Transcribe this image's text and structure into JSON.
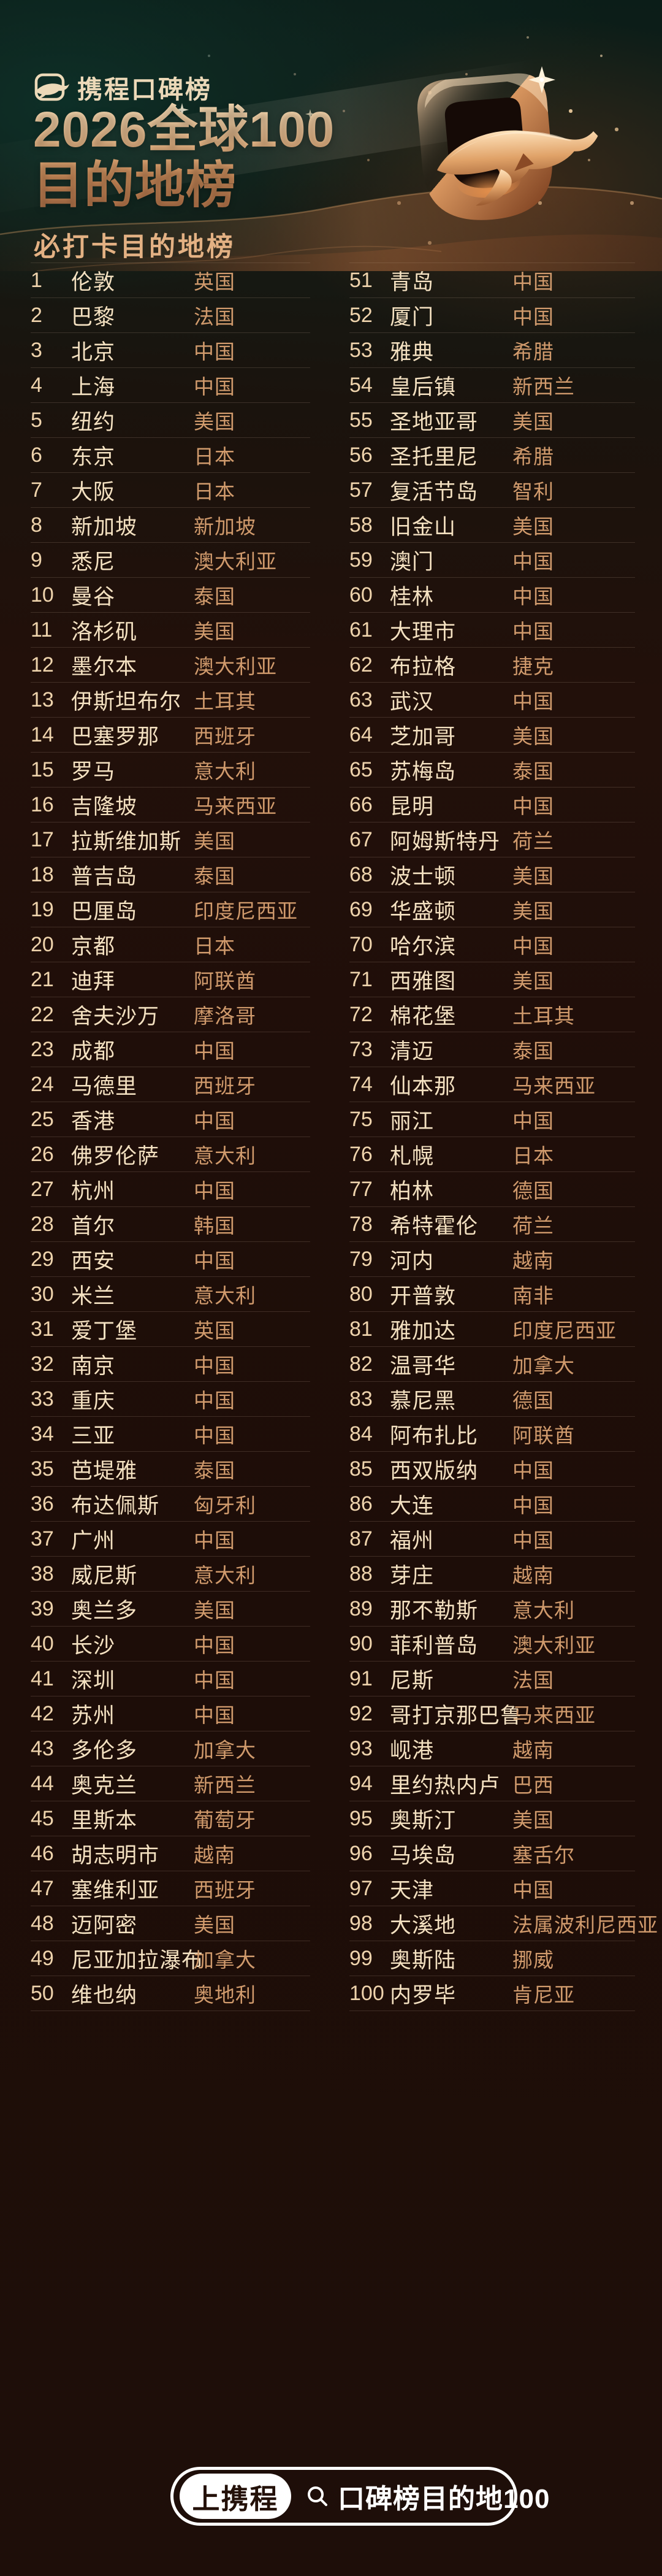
{
  "header": {
    "brand": "携程口碑榜",
    "title_line1": "2026全球100",
    "title_line2": "目的地榜",
    "section_title": "必打卡目的地榜"
  },
  "list": {
    "left": [
      {
        "rank": "1",
        "city": "伦敦",
        "country": "英国"
      },
      {
        "rank": "2",
        "city": "巴黎",
        "country": "法国"
      },
      {
        "rank": "3",
        "city": "北京",
        "country": "中国"
      },
      {
        "rank": "4",
        "city": "上海",
        "country": "中国"
      },
      {
        "rank": "5",
        "city": "纽约",
        "country": "美国"
      },
      {
        "rank": "6",
        "city": "东京",
        "country": "日本"
      },
      {
        "rank": "7",
        "city": "大阪",
        "country": "日本"
      },
      {
        "rank": "8",
        "city": "新加坡",
        "country": "新加坡"
      },
      {
        "rank": "9",
        "city": "悉尼",
        "country": "澳大利亚"
      },
      {
        "rank": "10",
        "city": "曼谷",
        "country": "泰国"
      },
      {
        "rank": "11",
        "city": "洛杉矶",
        "country": "美国"
      },
      {
        "rank": "12",
        "city": "墨尔本",
        "country": "澳大利亚"
      },
      {
        "rank": "13",
        "city": "伊斯坦布尔",
        "country": "土耳其"
      },
      {
        "rank": "14",
        "city": "巴塞罗那",
        "country": "西班牙"
      },
      {
        "rank": "15",
        "city": "罗马",
        "country": "意大利"
      },
      {
        "rank": "16",
        "city": "吉隆坡",
        "country": "马来西亚"
      },
      {
        "rank": "17",
        "city": "拉斯维加斯",
        "country": "美国"
      },
      {
        "rank": "18",
        "city": "普吉岛",
        "country": "泰国"
      },
      {
        "rank": "19",
        "city": "巴厘岛",
        "country": "印度尼西亚"
      },
      {
        "rank": "20",
        "city": "京都",
        "country": "日本"
      },
      {
        "rank": "21",
        "city": "迪拜",
        "country": "阿联酋"
      },
      {
        "rank": "22",
        "city": "舍夫沙万",
        "country": "摩洛哥"
      },
      {
        "rank": "23",
        "city": "成都",
        "country": "中国"
      },
      {
        "rank": "24",
        "city": "马德里",
        "country": "西班牙"
      },
      {
        "rank": "25",
        "city": "香港",
        "country": "中国"
      },
      {
        "rank": "26",
        "city": "佛罗伦萨",
        "country": "意大利"
      },
      {
        "rank": "27",
        "city": "杭州",
        "country": "中国"
      },
      {
        "rank": "28",
        "city": "首尔",
        "country": "韩国"
      },
      {
        "rank": "29",
        "city": "西安",
        "country": "中国"
      },
      {
        "rank": "30",
        "city": "米兰",
        "country": "意大利"
      },
      {
        "rank": "31",
        "city": "爱丁堡",
        "country": "英国"
      },
      {
        "rank": "32",
        "city": "南京",
        "country": "中国"
      },
      {
        "rank": "33",
        "city": "重庆",
        "country": "中国"
      },
      {
        "rank": "34",
        "city": "三亚",
        "country": "中国"
      },
      {
        "rank": "35",
        "city": "芭堤雅",
        "country": "泰国"
      },
      {
        "rank": "36",
        "city": "布达佩斯",
        "country": "匈牙利"
      },
      {
        "rank": "37",
        "city": "广州",
        "country": "中国"
      },
      {
        "rank": "38",
        "city": "威尼斯",
        "country": "意大利"
      },
      {
        "rank": "39",
        "city": "奥兰多",
        "country": "美国"
      },
      {
        "rank": "40",
        "city": "长沙",
        "country": "中国"
      },
      {
        "rank": "41",
        "city": "深圳",
        "country": "中国"
      },
      {
        "rank": "42",
        "city": "苏州",
        "country": "中国"
      },
      {
        "rank": "43",
        "city": "多伦多",
        "country": "加拿大"
      },
      {
        "rank": "44",
        "city": "奥克兰",
        "country": "新西兰"
      },
      {
        "rank": "45",
        "city": "里斯本",
        "country": "葡萄牙"
      },
      {
        "rank": "46",
        "city": "胡志明市",
        "country": "越南"
      },
      {
        "rank": "47",
        "city": "塞维利亚",
        "country": "西班牙"
      },
      {
        "rank": "48",
        "city": "迈阿密",
        "country": "美国"
      },
      {
        "rank": "49",
        "city": "尼亚加拉瀑布",
        "country": "加拿大"
      },
      {
        "rank": "50",
        "city": "维也纳",
        "country": "奥地利"
      }
    ],
    "right": [
      {
        "rank": "51",
        "city": "青岛",
        "country": "中国"
      },
      {
        "rank": "52",
        "city": "厦门",
        "country": "中国"
      },
      {
        "rank": "53",
        "city": "雅典",
        "country": "希腊"
      },
      {
        "rank": "54",
        "city": "皇后镇",
        "country": "新西兰"
      },
      {
        "rank": "55",
        "city": "圣地亚哥",
        "country": "美国"
      },
      {
        "rank": "56",
        "city": "圣托里尼",
        "country": "希腊"
      },
      {
        "rank": "57",
        "city": "复活节岛",
        "country": "智利"
      },
      {
        "rank": "58",
        "city": "旧金山",
        "country": "美国"
      },
      {
        "rank": "59",
        "city": "澳门",
        "country": "中国"
      },
      {
        "rank": "60",
        "city": "桂林",
        "country": "中国"
      },
      {
        "rank": "61",
        "city": "大理市",
        "country": "中国"
      },
      {
        "rank": "62",
        "city": "布拉格",
        "country": "捷克"
      },
      {
        "rank": "63",
        "city": "武汉",
        "country": "中国"
      },
      {
        "rank": "64",
        "city": "芝加哥",
        "country": "美国"
      },
      {
        "rank": "65",
        "city": "苏梅岛",
        "country": "泰国"
      },
      {
        "rank": "66",
        "city": "昆明",
        "country": "中国"
      },
      {
        "rank": "67",
        "city": "阿姆斯特丹",
        "country": "荷兰"
      },
      {
        "rank": "68",
        "city": "波士顿",
        "country": "美国"
      },
      {
        "rank": "69",
        "city": "华盛顿",
        "country": "美国"
      },
      {
        "rank": "70",
        "city": "哈尔滨",
        "country": "中国"
      },
      {
        "rank": "71",
        "city": "西雅图",
        "country": "美国"
      },
      {
        "rank": "72",
        "city": "棉花堡",
        "country": "土耳其"
      },
      {
        "rank": "73",
        "city": "清迈",
        "country": "泰国"
      },
      {
        "rank": "74",
        "city": "仙本那",
        "country": "马来西亚"
      },
      {
        "rank": "75",
        "city": "丽江",
        "country": "中国"
      },
      {
        "rank": "76",
        "city": "札幌",
        "country": "日本"
      },
      {
        "rank": "77",
        "city": "柏林",
        "country": "德国"
      },
      {
        "rank": "78",
        "city": "希特霍伦",
        "country": "荷兰"
      },
      {
        "rank": "79",
        "city": "河内",
        "country": "越南"
      },
      {
        "rank": "80",
        "city": "开普敦",
        "country": "南非"
      },
      {
        "rank": "81",
        "city": "雅加达",
        "country": "印度尼西亚"
      },
      {
        "rank": "82",
        "city": "温哥华",
        "country": "加拿大"
      },
      {
        "rank": "83",
        "city": "慕尼黑",
        "country": "德国"
      },
      {
        "rank": "84",
        "city": "阿布扎比",
        "country": "阿联酋"
      },
      {
        "rank": "85",
        "city": "西双版纳",
        "country": "中国"
      },
      {
        "rank": "86",
        "city": "大连",
        "country": "中国"
      },
      {
        "rank": "87",
        "city": "福州",
        "country": "中国"
      },
      {
        "rank": "88",
        "city": "芽庄",
        "country": "越南"
      },
      {
        "rank": "89",
        "city": "那不勒斯",
        "country": "意大利"
      },
      {
        "rank": "90",
        "city": "菲利普岛",
        "country": "澳大利亚"
      },
      {
        "rank": "91",
        "city": "尼斯",
        "country": "法国"
      },
      {
        "rank": "92",
        "city": "哥打京那巴鲁",
        "country": "马来西亚"
      },
      {
        "rank": "93",
        "city": "岘港",
        "country": "越南"
      },
      {
        "rank": "94",
        "city": "里约热内卢",
        "country": "巴西"
      },
      {
        "rank": "95",
        "city": "奥斯汀",
        "country": "美国"
      },
      {
        "rank": "96",
        "city": "马埃岛",
        "country": "塞舌尔"
      },
      {
        "rank": "97",
        "city": "天津",
        "country": "中国"
      },
      {
        "rank": "98",
        "city": "大溪地",
        "country": "法属波利尼西亚"
      },
      {
        "rank": "99",
        "city": "奥斯陆",
        "country": "挪威"
      },
      {
        "rank": "100",
        "city": "内罗毕",
        "country": "肯尼亚"
      }
    ]
  },
  "footer": {
    "cta_label": "上携程",
    "search_label": "口碑榜目的地100"
  },
  "colors": {
    "background_brown": "#1d0d08",
    "background_teal_top": "#0b1d18",
    "title_copper_light": "#f9dcb4",
    "title_copper_dark": "#b4744a",
    "section_title": "#e3b183",
    "rank_text": "#eed3ac",
    "city_text": "#f4e1c1",
    "country_text": "#d09a6c",
    "divider": "rgba(233,203,175,0.17)",
    "pill_white": "#ffffff",
    "pill_text_dark": "#241109"
  }
}
